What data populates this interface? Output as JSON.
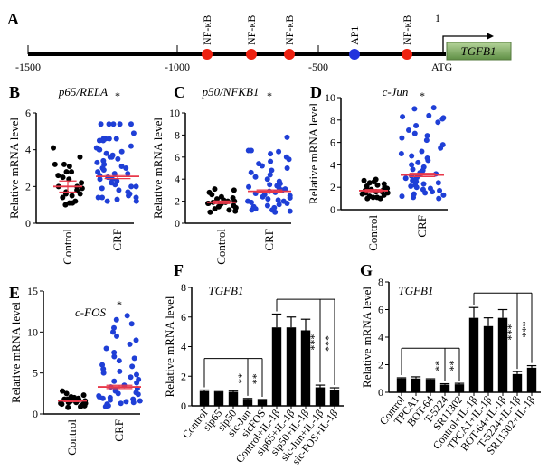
{
  "promoter_diagram": {
    "panel_label": "A",
    "axis_ticks": [
      "-1500",
      "-1000",
      "-500"
    ],
    "sites": [
      {
        "name": "NF-κB",
        "position": -870,
        "color": "#ee2211"
      },
      {
        "name": "NF-κB",
        "position": -720,
        "color": "#ee2211"
      },
      {
        "name": "NF-κB",
        "position": -590,
        "color": "#ee2211"
      },
      {
        "name": "AP1",
        "position": -370,
        "color": "#2233dd"
      },
      {
        "name": "NF-κB",
        "position": -190,
        "color": "#ee2211"
      }
    ],
    "tss_label": "1",
    "atg_label": "ATG",
    "gene": "TGFB1",
    "gene_color": "#7aa65a"
  },
  "chart_data": [
    {
      "id": "B",
      "panel_label": "B",
      "type": "scatter",
      "title": "p65/RELA",
      "ylabel": "Relative mRNA level",
      "ylim": [
        0,
        6
      ],
      "yticks": [
        0,
        2,
        4,
        6
      ],
      "categories": [
        "Control",
        "CRF"
      ],
      "significance": "*",
      "series": [
        {
          "values": [
            4.1,
            3.6,
            3.2,
            3.1,
            3.2,
            2.8,
            2.8,
            2.6,
            2.5,
            2.4,
            2.2,
            2.0,
            2.0,
            1.9,
            1.8,
            1.7,
            1.6,
            1.6,
            1.5,
            1.4,
            1.2,
            1.1,
            1.1,
            1.0
          ],
          "mean": 2.0,
          "sem": 0.3,
          "color": "#000000"
        },
        {
          "values": [
            5.4,
            5.4,
            5.4,
            5.4,
            5.4,
            4.9,
            4.6,
            4.6,
            4.6,
            4.6,
            4.5,
            4.5,
            4.2,
            4.1,
            4.0,
            4.0,
            3.9,
            3.8,
            3.7,
            3.6,
            3.6,
            3.5,
            3.4,
            3.3,
            3.2,
            3.1,
            3.0,
            3.0,
            2.9,
            2.8,
            2.7,
            2.7,
            2.6,
            2.5,
            2.4,
            2.4,
            2.3,
            2.2,
            2.1,
            2.0,
            2.0,
            1.9,
            1.8,
            1.7,
            1.6,
            1.5,
            1.4,
            1.4,
            1.4,
            1.3,
            1.2,
            1.2
          ],
          "mean": 2.55,
          "sem": 0.12,
          "color": "#1f3fd6"
        }
      ]
    },
    {
      "id": "C",
      "panel_label": "C",
      "type": "scatter",
      "title": "p50/NFKB1",
      "ylabel": "Relative mRNA level",
      "ylim": [
        0,
        10
      ],
      "yticks": [
        0,
        2,
        4,
        6,
        8,
        10
      ],
      "categories": [
        "Control",
        "CRF"
      ],
      "significance": "*",
      "series": [
        {
          "values": [
            3.1,
            3.0,
            2.8,
            2.6,
            2.4,
            2.3,
            2.2,
            2.1,
            2.0,
            2.0,
            1.9,
            1.9,
            1.8,
            1.8,
            1.8,
            1.7,
            1.7,
            1.6,
            1.5,
            1.4,
            1.3,
            1.2,
            1.1,
            1.0
          ],
          "mean": 1.9,
          "sem": 0.12,
          "color": "#000000"
        },
        {
          "values": [
            7.8,
            6.6,
            6.6,
            6.5,
            6.3,
            6.0,
            5.8,
            5.6,
            5.4,
            5.2,
            5.0,
            4.8,
            4.6,
            4.4,
            4.2,
            4.0,
            3.8,
            3.6,
            3.5,
            3.4,
            3.3,
            3.2,
            3.1,
            3.0,
            2.9,
            2.8,
            2.7,
            2.6,
            2.5,
            2.4,
            2.3,
            2.2,
            2.1,
            2.0,
            2.0,
            1.9,
            1.8,
            1.7,
            1.6,
            1.5,
            1.4,
            1.3,
            1.2,
            1.2,
            1.1,
            1.0
          ],
          "mean": 2.9,
          "sem": 0.12,
          "color": "#1f3fd6"
        }
      ]
    },
    {
      "id": "D",
      "panel_label": "D",
      "type": "scatter",
      "title": "c-Jun",
      "ylabel": "Relative mRNA level",
      "ylim": [
        0,
        10
      ],
      "yticks": [
        0,
        2,
        4,
        6,
        8,
        10
      ],
      "categories": [
        "Control",
        "CRF"
      ],
      "significance": "*",
      "series": [
        {
          "values": [
            2.7,
            2.6,
            2.5,
            2.4,
            2.3,
            2.2,
            2.1,
            2.0,
            1.9,
            1.8,
            1.8,
            1.7,
            1.7,
            1.6,
            1.6,
            1.5,
            1.5,
            1.4,
            1.3,
            1.2,
            1.1,
            1.1,
            1.0,
            1.0
          ],
          "mean": 1.7,
          "sem": 0.1,
          "color": "#000000"
        },
        {
          "values": [
            9.1,
            9.0,
            8.4,
            8.3,
            8.2,
            8.1,
            7.8,
            7.5,
            7.1,
            6.8,
            6.6,
            6.4,
            6.2,
            5.8,
            5.5,
            5.2,
            5.0,
            4.8,
            4.6,
            4.4,
            4.2,
            4.0,
            3.8,
            3.6,
            3.5,
            3.4,
            3.3,
            3.2,
            3.1,
            3.0,
            2.9,
            2.8,
            2.7,
            2.6,
            2.5,
            2.4,
            2.3,
            2.2,
            2.1,
            2.0,
            1.9,
            1.8,
            1.7,
            1.6,
            1.5,
            1.4,
            1.3,
            1.2,
            1.1,
            1.0
          ],
          "mean": 3.1,
          "sem": 0.15,
          "color": "#1f3fd6"
        }
      ]
    },
    {
      "id": "E",
      "panel_label": "E",
      "type": "scatter",
      "title": "c-FOS",
      "ylabel": "Relative mRNA level",
      "ylim": [
        0,
        15
      ],
      "yticks": [
        0,
        5,
        10,
        15
      ],
      "categories": [
        "Control",
        "CRF"
      ],
      "significance": "*",
      "series": [
        {
          "values": [
            2.8,
            2.5,
            2.3,
            2.1,
            2.0,
            1.9,
            1.8,
            1.8,
            1.7,
            1.6,
            1.6,
            1.5,
            1.5,
            1.4,
            1.4,
            1.3,
            1.3,
            1.2,
            1.2,
            1.1,
            1.0,
            1.0,
            0.9,
            0.8
          ],
          "mean": 1.6,
          "sem": 0.1,
          "color": "#000000"
        },
        {
          "values": [
            12.0,
            11.5,
            11.0,
            10.5,
            10.0,
            9.5,
            9.0,
            8.5,
            8.0,
            7.5,
            7.0,
            6.8,
            6.5,
            6.0,
            5.8,
            5.5,
            5.2,
            5.0,
            4.8,
            4.5,
            4.2,
            4.0,
            3.8,
            3.5,
            3.3,
            3.1,
            3.0,
            2.8,
            2.6,
            2.5,
            2.4,
            2.2,
            2.1,
            2.0,
            1.9,
            1.8,
            1.7,
            1.6,
            1.5,
            1.4,
            1.3,
            1.2,
            1.1,
            1.0,
            1.0,
            0.9
          ],
          "mean": 3.3,
          "sem": 0.2,
          "color": "#1f3fd6"
        }
      ]
    },
    {
      "id": "F",
      "panel_label": "F",
      "type": "bar",
      "title": "TGFB1",
      "ylabel": "Relative mRNA level",
      "ylim": [
        0,
        8
      ],
      "yticks": [
        0,
        2,
        4,
        6,
        8
      ],
      "categories": [
        "Control",
        "sip65",
        "sip50",
        "sic-Jun",
        "sicFOS",
        "Control+IL-1β",
        "sip65+IL-1β",
        "sip50+IL-1β",
        "sic-Jun+IL-1β",
        "sic-FOS+IL-1β"
      ],
      "values": [
        1.0,
        0.93,
        0.95,
        0.45,
        0.38,
        5.3,
        5.3,
        5.1,
        1.25,
        1.1
      ],
      "errors": [
        0.07,
        0.03,
        0.07,
        0.05,
        0.05,
        0.9,
        0.7,
        0.75,
        0.15,
        0.12
      ],
      "brackets": [
        {
          "from": 0,
          "to": [
            3,
            4
          ],
          "level": 3.2,
          "label": "**"
        },
        {
          "from": 5,
          "to": [
            8,
            9
          ],
          "level": 7.2,
          "label": "***"
        }
      ]
    },
    {
      "id": "G",
      "panel_label": "G",
      "type": "bar",
      "title": "TGFB1",
      "ylabel": "Relative mRNA level",
      "ylim": [
        0,
        8
      ],
      "yticks": [
        0,
        2,
        4,
        6,
        8
      ],
      "categories": [
        "Control",
        "TPCA1",
        "BOT-64",
        "T-5224",
        "SR11302",
        "Control+IL-1β",
        "TPCA1+IL-1β",
        "BOT-64+IL-1β",
        "T-5224+IL-1β",
        "SR11302+IL-1β"
      ],
      "values": [
        1.0,
        1.0,
        0.93,
        0.55,
        0.58,
        5.4,
        4.8,
        5.4,
        1.32,
        1.78
      ],
      "errors": [
        0.05,
        0.12,
        0.05,
        0.07,
        0.07,
        0.75,
        0.6,
        0.6,
        0.18,
        0.15
      ],
      "brackets": [
        {
          "from": 0,
          "to": [
            3,
            4
          ],
          "level": 3.2,
          "label": "**"
        },
        {
          "from": 5,
          "to": [
            8,
            9
          ],
          "level": 7.2,
          "label": "***"
        }
      ]
    }
  ]
}
